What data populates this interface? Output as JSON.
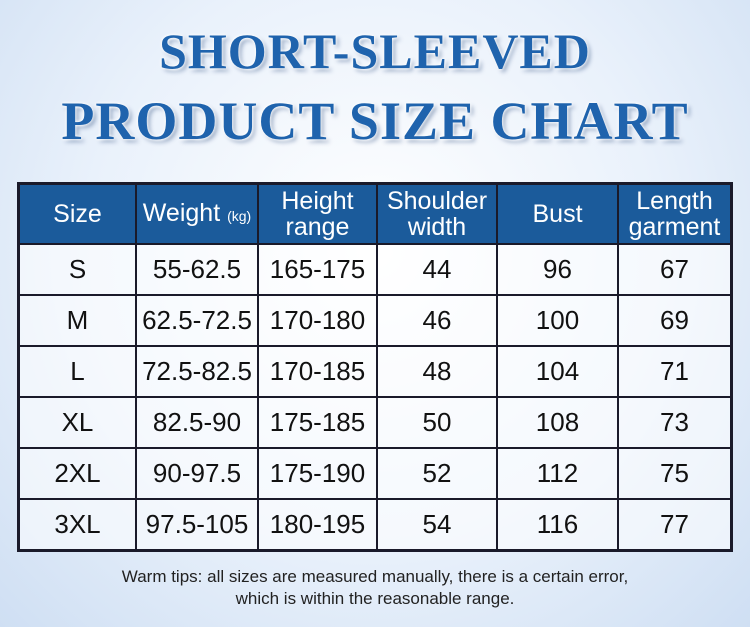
{
  "title": {
    "line1": "SHORT-SLEEVED",
    "line2": "PRODUCT SIZE CHART"
  },
  "table": {
    "headers": [
      {
        "a": "Size",
        "b": ""
      },
      {
        "a": "Weight",
        "b": "(kg)"
      },
      {
        "a": "Height",
        "b": "range"
      },
      {
        "a": "Shoulder",
        "b": "width"
      },
      {
        "a": "Bust",
        "b": ""
      },
      {
        "a": "Length",
        "b": "garment"
      }
    ],
    "rows": [
      [
        "S",
        "55-62.5",
        "165-175",
        "44",
        "96",
        "67"
      ],
      [
        "M",
        "62.5-72.5",
        "170-180",
        "46",
        "100",
        "69"
      ],
      [
        "L",
        "72.5-82.5",
        "170-185",
        "48",
        "104",
        "71"
      ],
      [
        "XL",
        "82.5-90",
        "175-185",
        "50",
        "108",
        "73"
      ],
      [
        "2XL",
        "90-97.5",
        "175-190",
        "52",
        "112",
        "75"
      ],
      [
        "3XL",
        "97.5-105",
        "180-195",
        "54",
        "116",
        "77"
      ]
    ]
  },
  "tips": {
    "line1": "Warm tips: all sizes are measured manually, there is a certain error,",
    "line2": "which is within the reasonable range."
  },
  "colors": {
    "title": "#1f63ad",
    "header": "#1b5b9b"
  }
}
